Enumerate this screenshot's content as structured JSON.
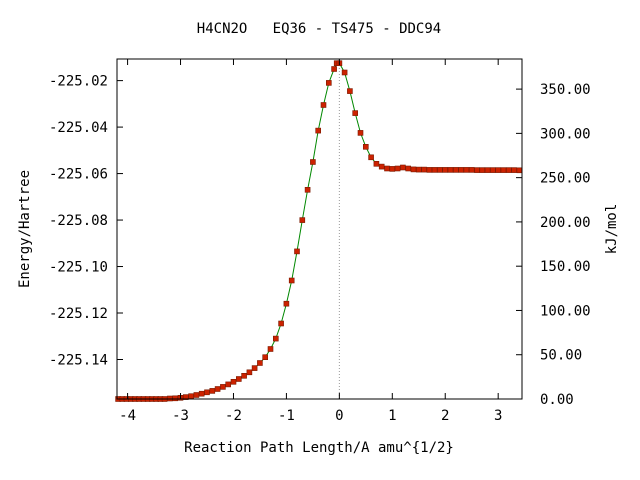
{
  "chart_data": {
    "type": "scatter",
    "title": "H4CN2O   EQ36 - TS475 - DDC94",
    "xlabel": "Reaction Path Length/A amu^{1/2}",
    "ylabel": "Energy/Hartree",
    "y2label": "kJ/mol",
    "xlim": [
      -4.2,
      3.45
    ],
    "ylim": [
      -225.157,
      -225.0107
    ],
    "y2lim": [
      0.0,
      384.0
    ],
    "x_ticks": [
      -4,
      -3,
      -2,
      -1,
      0,
      1,
      2,
      3
    ],
    "y_ticks": [
      -225.14,
      -225.12,
      -225.1,
      -225.08,
      -225.06,
      -225.04,
      -225.02
    ],
    "y2_ticks": [
      0.0,
      50.0,
      100.0,
      150.0,
      200.0,
      250.0,
      300.0,
      350.0
    ],
    "ts_marker_x": 0.0,
    "grid": false,
    "colors": {
      "points": "#cc2200",
      "point_outline": "#7a1a00",
      "curve": "#008800",
      "ts_line": "#999999",
      "axes": "#000000"
    },
    "series": [
      {
        "x": [
          -4.18,
          -4.1,
          -4.02,
          -3.94,
          -3.86,
          -3.78,
          -3.7,
          -3.62,
          -3.54,
          -3.46,
          -3.38,
          -3.3,
          -3.2,
          -3.1,
          -3.0,
          -2.9,
          -2.8,
          -2.7,
          -2.6,
          -2.5,
          -2.4,
          -2.3,
          -2.2,
          -2.1,
          -2.0,
          -1.9,
          -1.8,
          -1.7,
          -1.6,
          -1.5,
          -1.4,
          -1.3,
          -1.2,
          -1.1,
          -1.0,
          -0.9,
          -0.8,
          -0.7,
          -0.6,
          -0.5,
          -0.4,
          -0.3,
          -0.2,
          -0.1,
          -0.05,
          0.0,
          0.1,
          0.2,
          0.3,
          0.4,
          0.5,
          0.6,
          0.7,
          0.8,
          0.9,
          1.0,
          1.1,
          1.2,
          1.3,
          1.4,
          1.5,
          1.6,
          1.7,
          1.8,
          1.9,
          2.0,
          2.1,
          2.2,
          2.3,
          2.4,
          2.5,
          2.6,
          2.7,
          2.8,
          2.9,
          3.0,
          3.1,
          3.2,
          3.3,
          3.4
        ],
        "y": [
          -225.157,
          -225.157,
          -225.157,
          -225.157,
          -225.157,
          -225.157,
          -225.157,
          -225.157,
          -225.157,
          -225.157,
          -225.157,
          -225.157,
          -225.1568,
          -225.1567,
          -225.1565,
          -225.1562,
          -225.1558,
          -225.1553,
          -225.1547,
          -225.1541,
          -225.1535,
          -225.1527,
          -225.1518,
          -225.1507,
          -225.1496,
          -225.1484,
          -225.147,
          -225.1455,
          -225.1437,
          -225.1415,
          -225.139,
          -225.1355,
          -225.131,
          -225.1245,
          -225.116,
          -225.106,
          -225.0935,
          -225.08,
          -225.067,
          -225.055,
          -225.0415,
          -225.0305,
          -225.021,
          -225.015,
          -225.0125,
          -225.0125,
          -225.0165,
          -225.0245,
          -225.034,
          -225.0425,
          -225.0485,
          -225.053,
          -225.0558,
          -225.057,
          -225.0578,
          -225.058,
          -225.0578,
          -225.0574,
          -225.0578,
          -225.0582,
          -225.0583,
          -225.0583,
          -225.0584,
          -225.0584,
          -225.0584,
          -225.0584,
          -225.0584,
          -225.0584,
          -225.0584,
          -225.0584,
          -225.0584,
          -225.0585,
          -225.0585,
          -225.0585,
          -225.0585,
          -225.0585,
          -225.0585,
          -225.0585,
          -225.0585,
          -225.0586
        ]
      }
    ]
  }
}
